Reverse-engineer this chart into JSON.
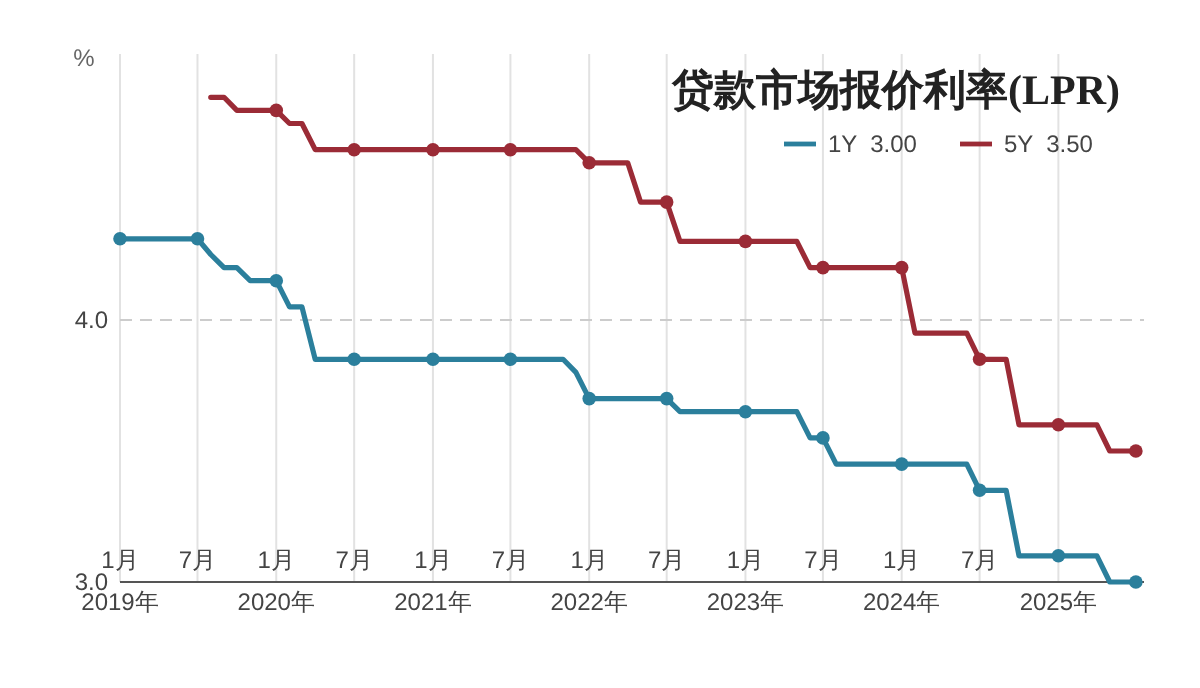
{
  "chart_data": {
    "type": "line",
    "title": "贷款市场报价利率(LPR)",
    "ylabel": "%",
    "ylim": [
      3,
      5
    ],
    "yticks": [
      {
        "value": 3,
        "label": "3.0"
      },
      {
        "value": 4,
        "label": "4.0"
      }
    ],
    "xlim": [
      "2019-01",
      "2025-07-20"
    ],
    "xticks": [
      {
        "value": "2019-01",
        "label": "1月"
      },
      {
        "value": "2019-07",
        "label": "7月"
      },
      {
        "value": "2020-01",
        "label": "1月"
      },
      {
        "value": "2020-07",
        "label": "7月"
      },
      {
        "value": "2021-01",
        "label": "1月"
      },
      {
        "value": "2021-07",
        "label": "7月"
      },
      {
        "value": "2022-01",
        "label": "1月"
      },
      {
        "value": "2022-07",
        "label": "7月"
      },
      {
        "value": "2023-01",
        "label": "1月"
      },
      {
        "value": "2023-07",
        "label": "7月"
      },
      {
        "value": "2024-01",
        "label": "1月"
      },
      {
        "value": "2024-07",
        "label": "7月"
      },
      {
        "value": "2025-01",
        "label": null
      }
    ],
    "x2lim": [
      "2019-01",
      "2025-07-20"
    ],
    "x2ticks": [
      {
        "value": "2019-01",
        "label": "2019年"
      },
      {
        "value": "2020-01",
        "label": "2020年"
      },
      {
        "value": "2021-01",
        "label": "2021年"
      },
      {
        "value": "2022-01",
        "label": "2022年"
      },
      {
        "value": "2023-01",
        "label": "2023年"
      },
      {
        "value": "2024-01",
        "label": "2024年"
      },
      {
        "value": "2025-01",
        "label": "2025年"
      }
    ],
    "grid": "x",
    "ref_lines": [
      {
        "axis": "y",
        "value": 4,
        "color": "#cccccc",
        "line_style": "dashed"
      }
    ],
    "legend": "top right",
    "series": [
      {
        "name": "1Y  3.00",
        "color": "#2b7f9c",
        "x": [
          "2019-01",
          "2019-02",
          "2019-03",
          "2019-04",
          "2019-05",
          "2019-06",
          "2019-07",
          "2019-08",
          "2019-09",
          "2019-10",
          "2019-11",
          "2019-12",
          "2020-01",
          "2020-02",
          "2020-03",
          "2020-04",
          "2020-05",
          "2020-06",
          "2020-07",
          "2020-08",
          "2020-09",
          "2020-10",
          "2020-11",
          "2020-12",
          "2021-01",
          "2021-02",
          "2021-03",
          "2021-04",
          "2021-05",
          "2021-06",
          "2021-07",
          "2021-08",
          "2021-09",
          "2021-10",
          "2021-11",
          "2021-12",
          "2022-01",
          "2022-02",
          "2022-03",
          "2022-04",
          "2022-05",
          "2022-06",
          "2022-07",
          "2022-08",
          "2022-09",
          "2022-10",
          "2022-11",
          "2022-12",
          "2023-01",
          "2023-02",
          "2023-03",
          "2023-04",
          "2023-05",
          "2023-06",
          "2023-07",
          "2023-08",
          "2023-09",
          "2023-10",
          "2023-11",
          "2023-12",
          "2024-01",
          "2024-02",
          "2024-03",
          "2024-04",
          "2024-05",
          "2024-06",
          "2024-07",
          "2024-08",
          "2024-09",
          "2024-10",
          "2024-11",
          "2024-12",
          "2025-01",
          "2025-02",
          "2025-03",
          "2025-04",
          "2025-05",
          "2025-06",
          "2025-07"
        ],
        "values": [
          4.31,
          4.31,
          4.31,
          4.31,
          4.31,
          4.31,
          4.31,
          4.25,
          4.2,
          4.2,
          4.15,
          4.15,
          4.15,
          4.05,
          4.05,
          3.85,
          3.85,
          3.85,
          3.85,
          3.85,
          3.85,
          3.85,
          3.85,
          3.85,
          3.85,
          3.85,
          3.85,
          3.85,
          3.85,
          3.85,
          3.85,
          3.85,
          3.85,
          3.85,
          3.85,
          3.8,
          3.7,
          3.7,
          3.7,
          3.7,
          3.7,
          3.7,
          3.7,
          3.65,
          3.65,
          3.65,
          3.65,
          3.65,
          3.65,
          3.65,
          3.65,
          3.65,
          3.65,
          3.55,
          3.55,
          3.45,
          3.45,
          3.45,
          3.45,
          3.45,
          3.45,
          3.45,
          3.45,
          3.45,
          3.45,
          3.45,
          3.35,
          3.35,
          3.35,
          3.1,
          3.1,
          3.1,
          3.1,
          3.1,
          3.1,
          3.1,
          3.0,
          3.0,
          3.0
        ]
      },
      {
        "name": "5Y  3.50",
        "color": "#9b2b36",
        "x": [
          "2019-08",
          "2019-09",
          "2019-10",
          "2019-11",
          "2019-12",
          "2020-01",
          "2020-02",
          "2020-03",
          "2020-04",
          "2020-05",
          "2020-06",
          "2020-07",
          "2020-08",
          "2020-09",
          "2020-10",
          "2020-11",
          "2020-12",
          "2021-01",
          "2021-02",
          "2021-03",
          "2021-04",
          "2021-05",
          "2021-06",
          "2021-07",
          "2021-08",
          "2021-09",
          "2021-10",
          "2021-11",
          "2021-12",
          "2022-01",
          "2022-02",
          "2022-03",
          "2022-04",
          "2022-05",
          "2022-06",
          "2022-07",
          "2022-08",
          "2022-09",
          "2022-10",
          "2022-11",
          "2022-12",
          "2023-01",
          "2023-02",
          "2023-03",
          "2023-04",
          "2023-05",
          "2023-06",
          "2023-07",
          "2023-08",
          "2023-09",
          "2023-10",
          "2023-11",
          "2023-12",
          "2024-01",
          "2024-02",
          "2024-03",
          "2024-04",
          "2024-05",
          "2024-06",
          "2024-07",
          "2024-08",
          "2024-09",
          "2024-10",
          "2024-11",
          "2024-12",
          "2025-01",
          "2025-02",
          "2025-03",
          "2025-04",
          "2025-05",
          "2025-06",
          "2025-07"
        ],
        "values": [
          4.85,
          4.85,
          4.8,
          4.8,
          4.8,
          4.8,
          4.75,
          4.75,
          4.65,
          4.65,
          4.65,
          4.65,
          4.65,
          4.65,
          4.65,
          4.65,
          4.65,
          4.65,
          4.65,
          4.65,
          4.65,
          4.65,
          4.65,
          4.65,
          4.65,
          4.65,
          4.65,
          4.65,
          4.65,
          4.6,
          4.6,
          4.6,
          4.6,
          4.45,
          4.45,
          4.45,
          4.3,
          4.3,
          4.3,
          4.3,
          4.3,
          4.3,
          4.3,
          4.3,
          4.3,
          4.3,
          4.2,
          4.2,
          4.2,
          4.2,
          4.2,
          4.2,
          4.2,
          4.2,
          3.95,
          3.95,
          3.95,
          3.95,
          3.95,
          3.85,
          3.85,
          3.85,
          3.6,
          3.6,
          3.6,
          3.6,
          3.6,
          3.6,
          3.6,
          3.5,
          3.5,
          3.5
        ]
      },
      {
        "type": "scatter",
        "marker": "circle",
        "color": "#2b7f9c",
        "x": [
          "2019-01",
          "2019-07",
          "2020-01",
          "2020-07",
          "2021-01",
          "2021-07",
          "2022-01",
          "2022-07",
          "2023-01",
          "2023-07",
          "2024-01",
          "2024-07",
          "2025-01",
          "2025-07"
        ],
        "values": [
          4.31,
          4.31,
          4.15,
          3.85,
          3.85,
          3.85,
          3.7,
          3.7,
          3.65,
          3.55,
          3.45,
          3.35,
          3.1,
          3.0
        ]
      },
      {
        "type": "scatter",
        "marker": "circle",
        "color": "#9b2b36",
        "x": [
          "2020-01",
          "2020-07",
          "2021-01",
          "2021-07",
          "2022-01",
          "2022-07",
          "2023-01",
          "2023-07",
          "2024-01",
          "2024-07",
          "2025-01",
          "2025-07"
        ],
        "values": [
          4.8,
          4.65,
          4.65,
          4.65,
          4.6,
          4.45,
          4.3,
          4.2,
          4.2,
          3.85,
          3.6,
          3.5
        ]
      }
    ]
  }
}
